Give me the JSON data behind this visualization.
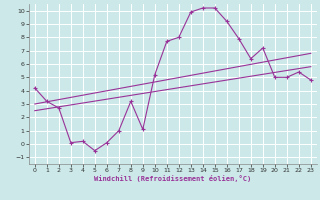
{
  "xlabel": "Windchill (Refroidissement éolien,°C)",
  "bg_color": "#cce8e8",
  "grid_color": "#aacccc",
  "line_color": "#993399",
  "xlim": [
    -0.5,
    23.5
  ],
  "ylim": [
    -1.5,
    10.5
  ],
  "xticks": [
    0,
    1,
    2,
    3,
    4,
    5,
    6,
    7,
    8,
    9,
    10,
    11,
    12,
    13,
    14,
    15,
    16,
    17,
    18,
    19,
    20,
    21,
    22,
    23
  ],
  "yticks": [
    -1,
    0,
    1,
    2,
    3,
    4,
    5,
    6,
    7,
    8,
    9,
    10
  ],
  "main_x": [
    0,
    1,
    2,
    3,
    4,
    5,
    6,
    7,
    8,
    9,
    10,
    11,
    12,
    13,
    14,
    15,
    16,
    17,
    18,
    19,
    20,
    21,
    22,
    23
  ],
  "main_y": [
    4.2,
    3.2,
    2.7,
    0.1,
    0.2,
    -0.5,
    0.1,
    1.0,
    3.2,
    1.1,
    5.2,
    7.7,
    8.0,
    9.9,
    10.2,
    10.2,
    9.2,
    7.9,
    6.4,
    7.2,
    5.0,
    5.0,
    5.4,
    4.8
  ],
  "line2_x": [
    0,
    23
  ],
  "line2_y": [
    3.0,
    6.8
  ],
  "line3_x": [
    0,
    23
  ],
  "line3_y": [
    2.5,
    5.8
  ]
}
